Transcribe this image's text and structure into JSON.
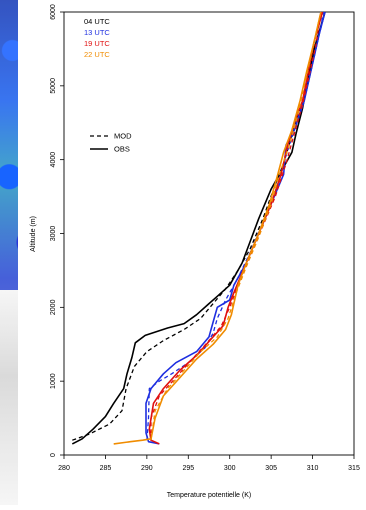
{
  "chart_data": {
    "type": "line",
    "xlabel": "Temperature potentielle (K)",
    "ylabel": "Altitude (m)",
    "xlim": [
      280,
      315
    ],
    "ylim": [
      0,
      6000
    ],
    "xticks": [
      "280",
      "285",
      "290",
      "295",
      "300",
      "305",
      "310",
      "315"
    ],
    "yticks": [
      "0",
      "1000",
      "2000",
      "3000",
      "4000",
      "5000",
      "6000"
    ],
    "legend_times": [
      {
        "label": "04 UTC",
        "color": "#000000"
      },
      {
        "label": "13 UTC",
        "color": "#1d2ee0"
      },
      {
        "label": "19 UTC",
        "color": "#e01010"
      },
      {
        "label": "22 UTC",
        "color": "#f08c00"
      }
    ],
    "legend_styles": [
      {
        "label": "MOD",
        "style": "dashed"
      },
      {
        "label": "OBS",
        "style": "solid"
      }
    ],
    "series": [
      {
        "time": "04 UTC",
        "kind": "OBS",
        "color": "#000000",
        "dashed": false,
        "points": [
          [
            281,
            150
          ],
          [
            282.2,
            220
          ],
          [
            283.5,
            350
          ],
          [
            285,
            520
          ],
          [
            286,
            700
          ],
          [
            287.2,
            900
          ],
          [
            287.6,
            1100
          ],
          [
            288.2,
            1320
          ],
          [
            288.6,
            1520
          ],
          [
            289.8,
            1620
          ],
          [
            292.5,
            1720
          ],
          [
            294.5,
            1780
          ],
          [
            296,
            1900
          ],
          [
            297.5,
            2050
          ],
          [
            298.5,
            2150
          ],
          [
            300,
            2300
          ],
          [
            301.5,
            2600
          ],
          [
            302.5,
            2900
          ],
          [
            303.5,
            3200
          ],
          [
            305,
            3600
          ],
          [
            306.5,
            3900
          ],
          [
            307.5,
            4100
          ],
          [
            308,
            4350
          ],
          [
            308.8,
            4700
          ],
          [
            309.5,
            5100
          ],
          [
            310.2,
            5500
          ],
          [
            311.5,
            6000
          ]
        ]
      },
      {
        "time": "04 UTC",
        "kind": "MOD",
        "color": "#000000",
        "dashed": true,
        "points": [
          [
            281,
            200
          ],
          [
            283,
            280
          ],
          [
            285.5,
            420
          ],
          [
            287,
            600
          ],
          [
            287.5,
            900
          ],
          [
            288.5,
            1200
          ],
          [
            290,
            1400
          ],
          [
            292,
            1550
          ],
          [
            294.5,
            1700
          ],
          [
            296.5,
            1850
          ],
          [
            298,
            2050
          ],
          [
            299.5,
            2250
          ],
          [
            301,
            2500
          ],
          [
            302.5,
            2800
          ],
          [
            304,
            3200
          ],
          [
            305.3,
            3600
          ],
          [
            306.5,
            3950
          ],
          [
            307.3,
            4250
          ],
          [
            308,
            4500
          ],
          [
            309.2,
            4900
          ],
          [
            310,
            5300
          ],
          [
            310.8,
            5700
          ],
          [
            311.5,
            6000
          ]
        ]
      },
      {
        "time": "13 UTC",
        "kind": "OBS",
        "color": "#1d2ee0",
        "dashed": false,
        "points": [
          [
            291.5,
            150
          ],
          [
            290.2,
            180
          ],
          [
            289.9,
            300
          ],
          [
            289.9,
            700
          ],
          [
            290.5,
            900
          ],
          [
            292,
            1100
          ],
          [
            293.5,
            1250
          ],
          [
            296,
            1400
          ],
          [
            297.5,
            1600
          ],
          [
            298,
            1800
          ],
          [
            298.5,
            2000
          ],
          [
            300,
            2100
          ],
          [
            300.5,
            2300
          ],
          [
            302,
            2600
          ],
          [
            303.5,
            3000
          ],
          [
            305,
            3400
          ],
          [
            306.5,
            3800
          ],
          [
            306.8,
            4200
          ],
          [
            307.8,
            4400
          ],
          [
            309,
            4800
          ],
          [
            309.8,
            5200
          ],
          [
            310.8,
            5700
          ],
          [
            311.5,
            6000
          ]
        ]
      },
      {
        "time": "13 UTC",
        "kind": "MOD",
        "color": "#1d2ee0",
        "dashed": true,
        "points": [
          [
            290,
            200
          ],
          [
            290.2,
            500
          ],
          [
            290.3,
            900
          ],
          [
            291.5,
            1000
          ],
          [
            293,
            1100
          ],
          [
            295,
            1250
          ],
          [
            297,
            1450
          ],
          [
            298,
            1650
          ],
          [
            298.5,
            1850
          ],
          [
            299.5,
            2100
          ],
          [
            301,
            2400
          ],
          [
            302.5,
            2750
          ],
          [
            304,
            3150
          ],
          [
            305.5,
            3550
          ],
          [
            306.5,
            3950
          ],
          [
            307.5,
            4300
          ],
          [
            308.5,
            4650
          ],
          [
            309.3,
            5000
          ],
          [
            310.2,
            5400
          ],
          [
            311,
            5800
          ],
          [
            311.3,
            6000
          ]
        ]
      },
      {
        "time": "19 UTC",
        "kind": "OBS",
        "color": "#e01010",
        "dashed": false,
        "points": [
          [
            291.5,
            150
          ],
          [
            290.5,
            200
          ],
          [
            290.3,
            350
          ],
          [
            290.8,
            700
          ],
          [
            292,
            900
          ],
          [
            294,
            1150
          ],
          [
            296,
            1350
          ],
          [
            298,
            1600
          ],
          [
            299.2,
            1750
          ],
          [
            299.8,
            2000
          ],
          [
            300.5,
            2200
          ],
          [
            302,
            2600
          ],
          [
            303.5,
            3000
          ],
          [
            305,
            3400
          ],
          [
            306.2,
            3800
          ],
          [
            307,
            4200
          ],
          [
            307.8,
            4500
          ],
          [
            308.8,
            4800
          ],
          [
            309.5,
            5200
          ],
          [
            310.2,
            5600
          ],
          [
            311.2,
            6000
          ]
        ]
      },
      {
        "time": "19 UTC",
        "kind": "MOD",
        "color": "#e01010",
        "dashed": true,
        "points": [
          [
            290.5,
            200
          ],
          [
            290.5,
            500
          ],
          [
            291.5,
            800
          ],
          [
            293.5,
            1050
          ],
          [
            295.5,
            1300
          ],
          [
            297.5,
            1550
          ],
          [
            299,
            1750
          ],
          [
            300,
            2000
          ],
          [
            301,
            2300
          ],
          [
            302.5,
            2700
          ],
          [
            304,
            3100
          ],
          [
            305.5,
            3500
          ],
          [
            306.8,
            3950
          ],
          [
            307.8,
            4350
          ],
          [
            308.8,
            4750
          ],
          [
            309.6,
            5150
          ],
          [
            310.4,
            5550
          ],
          [
            311,
            6000
          ]
        ]
      },
      {
        "time": "22 UTC",
        "kind": "OBS",
        "color": "#f08c00",
        "dashed": false,
        "points": [
          [
            286,
            150
          ],
          [
            288,
            180
          ],
          [
            289.5,
            200
          ],
          [
            290.5,
            220
          ],
          [
            291,
            500
          ],
          [
            292,
            800
          ],
          [
            294,
            1050
          ],
          [
            296,
            1300
          ],
          [
            298,
            1500
          ],
          [
            299.5,
            1700
          ],
          [
            300.2,
            1900
          ],
          [
            301,
            2300
          ],
          [
            302,
            2600
          ],
          [
            303.5,
            3000
          ],
          [
            304.8,
            3400
          ],
          [
            305.8,
            3800
          ],
          [
            306.5,
            4100
          ],
          [
            307.5,
            4400
          ],
          [
            308.5,
            4800
          ],
          [
            309.3,
            5200
          ],
          [
            310.2,
            5600
          ],
          [
            311,
            6000
          ]
        ]
      },
      {
        "time": "22 UTC",
        "kind": "MOD",
        "color": "#f08c00",
        "dashed": true,
        "points": [
          [
            290.5,
            200
          ],
          [
            291,
            600
          ],
          [
            292.5,
            900
          ],
          [
            294.5,
            1150
          ],
          [
            296.5,
            1400
          ],
          [
            298.5,
            1600
          ],
          [
            299.8,
            1850
          ],
          [
            300.8,
            2200
          ],
          [
            302,
            2550
          ],
          [
            303.5,
            2950
          ],
          [
            305,
            3400
          ],
          [
            306,
            3800
          ],
          [
            307.2,
            4200
          ],
          [
            308.2,
            4600
          ],
          [
            309,
            5000
          ],
          [
            309.8,
            5400
          ],
          [
            310.6,
            5800
          ],
          [
            311,
            6000
          ]
        ]
      }
    ]
  }
}
